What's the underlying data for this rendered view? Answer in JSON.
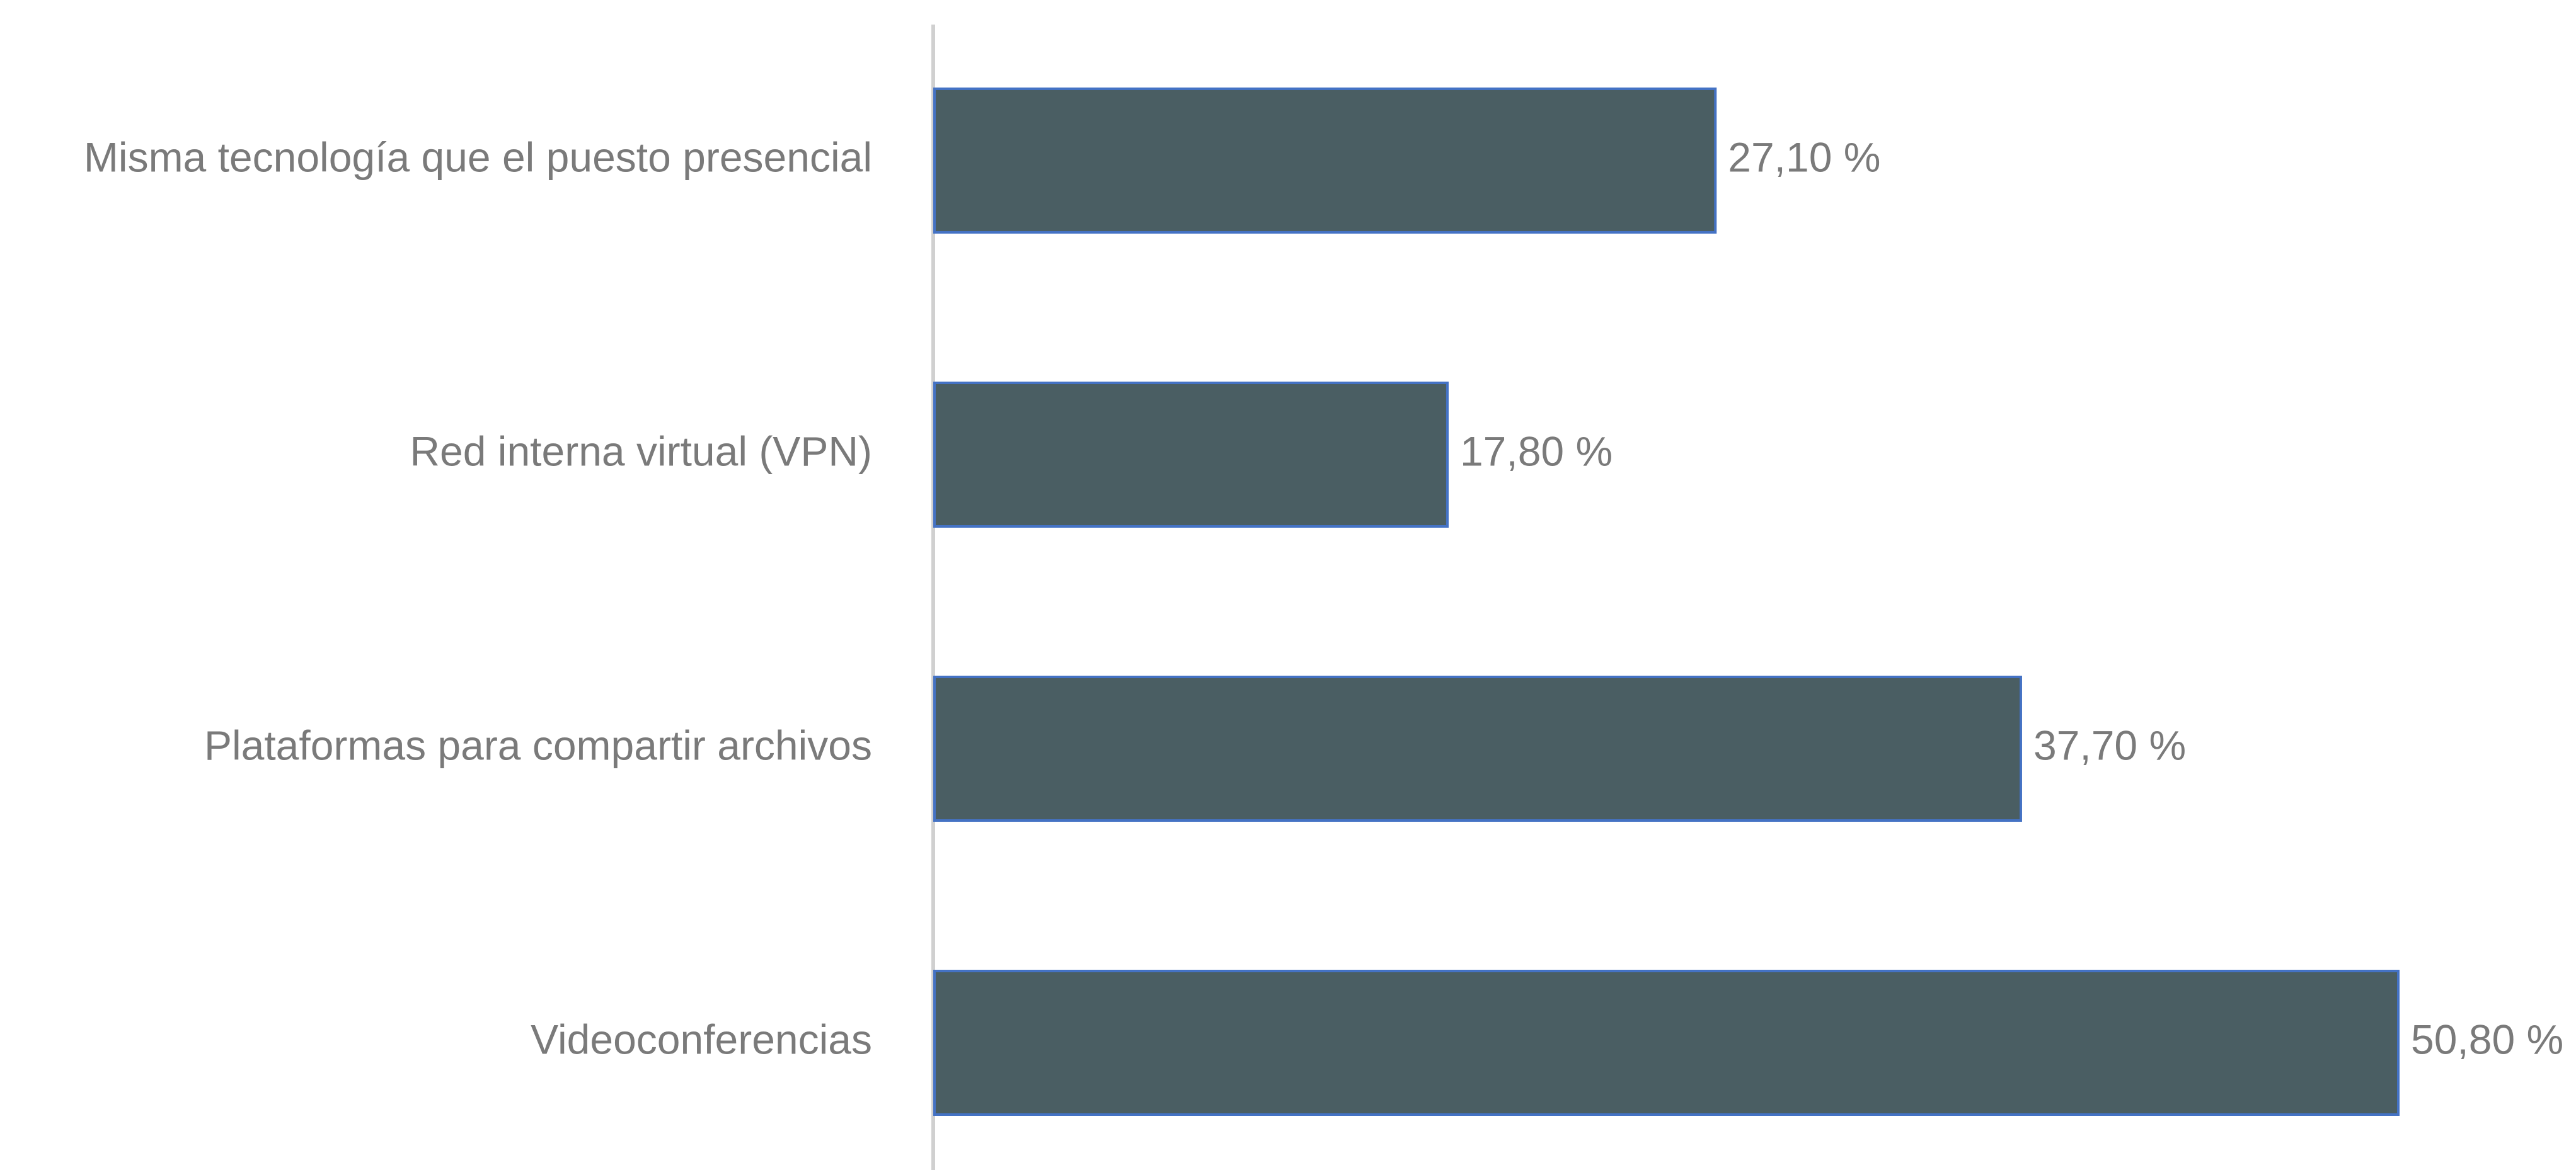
{
  "chart_data": {
    "type": "bar",
    "orientation": "horizontal",
    "categories": [
      "Misma tecnología que el puesto presencial",
      "Red interna virtual (VPN)",
      "Plataformas para compartir archivos",
      "Videoconferencias"
    ],
    "values": [
      27.1,
      17.8,
      37.7,
      50.8
    ],
    "value_labels": [
      "27,10 %",
      "17,80 %",
      "37,70 %",
      "50,80 %"
    ],
    "color": "#4a5e63"
  }
}
